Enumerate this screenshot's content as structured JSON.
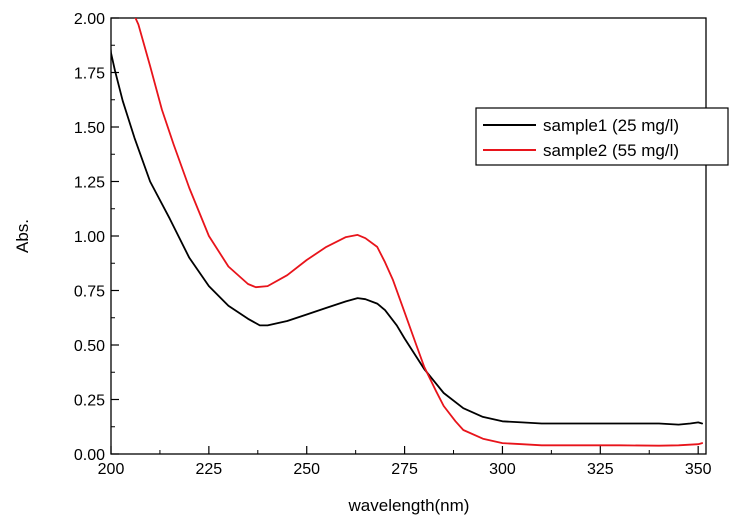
{
  "chart_data": {
    "type": "line",
    "xlabel": "wavelength(nm)",
    "ylabel": "Abs.",
    "xlim": [
      200,
      352
    ],
    "ylim": [
      0,
      2.0
    ],
    "xticks": [
      200,
      225,
      250,
      275,
      300,
      325,
      350
    ],
    "xtick_labels": [
      "200",
      "225",
      "250",
      "275",
      "300",
      "325",
      "350"
    ],
    "yticks": [
      0,
      0.25,
      0.5,
      0.75,
      1.0,
      1.25,
      1.5,
      1.75,
      2.0
    ],
    "ytick_labels": [
      "0.00",
      "0.25",
      "0.50",
      "0.75",
      "1.00",
      "1.25",
      "1.50",
      "1.75",
      "2.00"
    ],
    "grid": false,
    "legend_position": "top-right",
    "series": [
      {
        "name": "sample1 (25 mg/l)",
        "color": "#000000",
        "x": [
          199.5,
          200,
          201,
          203,
          206,
          210,
          215,
          220,
          225,
          230,
          235,
          238,
          240,
          245,
          250,
          255,
          260,
          263,
          265,
          268,
          270,
          273,
          275,
          280,
          285,
          290,
          295,
          300,
          305,
          310,
          320,
          330,
          340,
          345,
          348,
          350,
          351
        ],
        "y": [
          1.94,
          1.84,
          1.76,
          1.62,
          1.45,
          1.25,
          1.08,
          0.9,
          0.77,
          0.68,
          0.62,
          0.59,
          0.59,
          0.61,
          0.64,
          0.67,
          0.7,
          0.715,
          0.71,
          0.69,
          0.66,
          0.59,
          0.53,
          0.39,
          0.28,
          0.21,
          0.17,
          0.15,
          0.145,
          0.14,
          0.14,
          0.14,
          0.14,
          0.135,
          0.14,
          0.145,
          0.14
        ]
      },
      {
        "name": "sample2 (55 mg/l)",
        "color": "#e8141b",
        "x": [
          205,
          207,
          210,
          213,
          216,
          220,
          225,
          230,
          235,
          237,
          240,
          245,
          250,
          255,
          260,
          263,
          265,
          268,
          270,
          272,
          275,
          278,
          280,
          283,
          285,
          288,
          290,
          295,
          300,
          305,
          310,
          320,
          330,
          340,
          345,
          350,
          351
        ],
        "y": [
          2.05,
          1.97,
          1.78,
          1.58,
          1.42,
          1.22,
          1.0,
          0.86,
          0.78,
          0.765,
          0.77,
          0.82,
          0.89,
          0.95,
          0.995,
          1.005,
          0.99,
          0.95,
          0.88,
          0.8,
          0.65,
          0.5,
          0.4,
          0.29,
          0.22,
          0.15,
          0.11,
          0.07,
          0.05,
          0.045,
          0.04,
          0.04,
          0.04,
          0.038,
          0.04,
          0.045,
          0.05
        ]
      }
    ]
  }
}
